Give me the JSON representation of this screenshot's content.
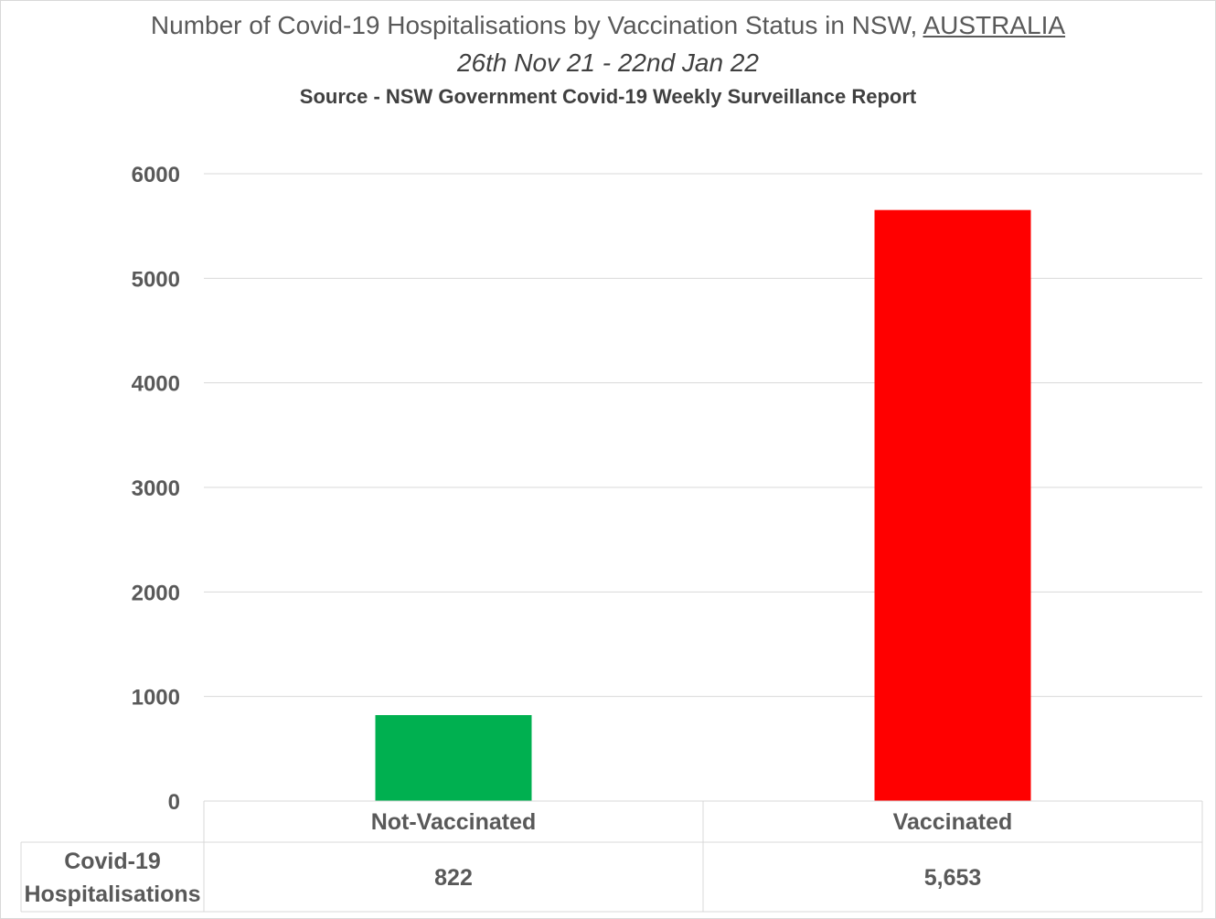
{
  "title_parts": {
    "main": "Number of Covid-19 Hospitalisations by Vaccination Status in NSW, ",
    "emphasis": "AUSTRALIA"
  },
  "subtitle": "26th Nov 21 - 22nd Jan 22",
  "source_note": "Source - NSW Government Covid-19 Weekly Surveillance Report",
  "colors": {
    "Not-Vaccinated": "#00b050",
    "Vaccinated": "#ff0000"
  },
  "chart_data": {
    "type": "bar",
    "categories": [
      "Not-Vaccinated",
      "Vaccinated"
    ],
    "series": [
      {
        "name": "Covid-19 Hospitalisations",
        "values": [
          822,
          5653
        ]
      }
    ],
    "value_labels": [
      "822",
      "5,653"
    ],
    "ylim": [
      0,
      6000
    ],
    "yticks": [
      0,
      1000,
      2000,
      3000,
      4000,
      5000,
      6000
    ],
    "grid": true,
    "legend": "none",
    "data_table": {
      "row_header": [
        "Covid-19",
        "Hospitalisations"
      ]
    }
  }
}
